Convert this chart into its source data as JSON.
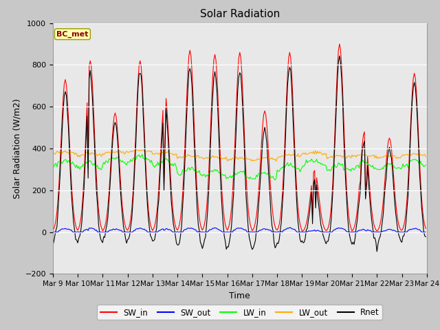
{
  "title": "Solar Radiation",
  "xlabel": "Time",
  "ylabel": "Solar Radiation (W/m2)",
  "ylim": [
    -200,
    1000
  ],
  "xlim": [
    0,
    360
  ],
  "fig_bg_color": "#c8c8c8",
  "plot_bg_color": "#e8e8e8",
  "legend_label": "BC_met",
  "x_tick_labels": [
    "Mar 9",
    "Mar 10",
    "Mar 11",
    "Mar 12",
    "Mar 13",
    "Mar 14",
    "Mar 15",
    "Mar 16",
    "Mar 17",
    "Mar 18",
    "Mar 19",
    "Mar 20",
    "Mar 21",
    "Mar 22",
    "Mar 23",
    "Mar 24"
  ],
  "x_tick_positions": [
    0,
    24,
    48,
    72,
    96,
    120,
    144,
    168,
    192,
    216,
    240,
    264,
    288,
    312,
    336,
    360
  ],
  "yticks": [
    -200,
    0,
    200,
    400,
    600,
    800,
    1000
  ],
  "colors": {
    "SW_in": "#ff0000",
    "SW_out": "#0000ff",
    "LW_in": "#00ff00",
    "LW_out": "#ffaa00",
    "Rnet": "#000000"
  },
  "lw": 0.8,
  "SW_in_peaks": [
    0,
    730,
    820,
    570,
    820,
    660,
    870,
    850,
    860,
    580,
    860,
    295,
    900,
    480,
    450,
    760
  ],
  "LW_in_bases": [
    330,
    320,
    340,
    350,
    330,
    290,
    280,
    270,
    270,
    310,
    330,
    310,
    320,
    310,
    330,
    340
  ],
  "LW_out_bases": [
    375,
    365,
    375,
    380,
    370,
    355,
    350,
    345,
    345,
    360,
    370,
    355,
    360,
    355,
    365,
    370
  ]
}
